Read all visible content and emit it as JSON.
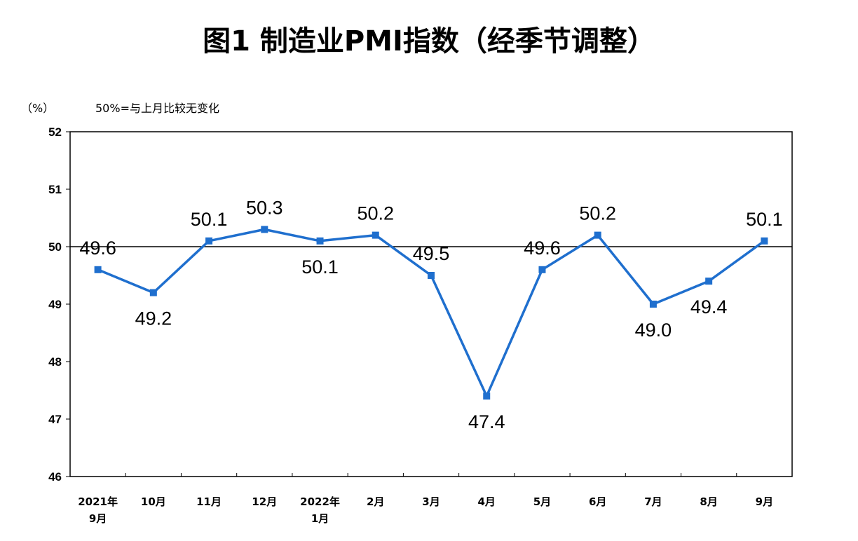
{
  "chart_data": {
    "type": "line",
    "title": "图1  制造业PMI指数（经季节调整）",
    "unit_label": "（%）",
    "reference_note": "50%=与上月比较无变化",
    "categories": [
      [
        "2021年",
        "9月"
      ],
      [
        "10月"
      ],
      [
        "11月"
      ],
      [
        "12月"
      ],
      [
        "2022年",
        "1月"
      ],
      [
        "2月"
      ],
      [
        "3月"
      ],
      [
        "4月"
      ],
      [
        "5月"
      ],
      [
        "6月"
      ],
      [
        "7月"
      ],
      [
        "8月"
      ],
      [
        "9月"
      ]
    ],
    "values": [
      49.6,
      49.2,
      50.1,
      50.3,
      50.1,
      50.2,
      49.5,
      47.4,
      49.6,
      50.2,
      49.0,
      49.4,
      50.1
    ],
    "data_labels": [
      "49.6",
      "49.2",
      "50.1",
      "50.3",
      "50.1",
      "50.2",
      "49.5",
      "47.4",
      "49.6",
      "50.2",
      "49.0",
      "49.4",
      "50.1"
    ],
    "ylim": [
      46,
      52
    ],
    "yticks": [
      "46",
      "47",
      "48",
      "49",
      "50",
      "51",
      "52"
    ],
    "reference_line": 50,
    "grid": false,
    "legend": "none",
    "colors": {
      "series": "#1F6FCE",
      "reference": "#000000",
      "frame": "#000000"
    }
  }
}
